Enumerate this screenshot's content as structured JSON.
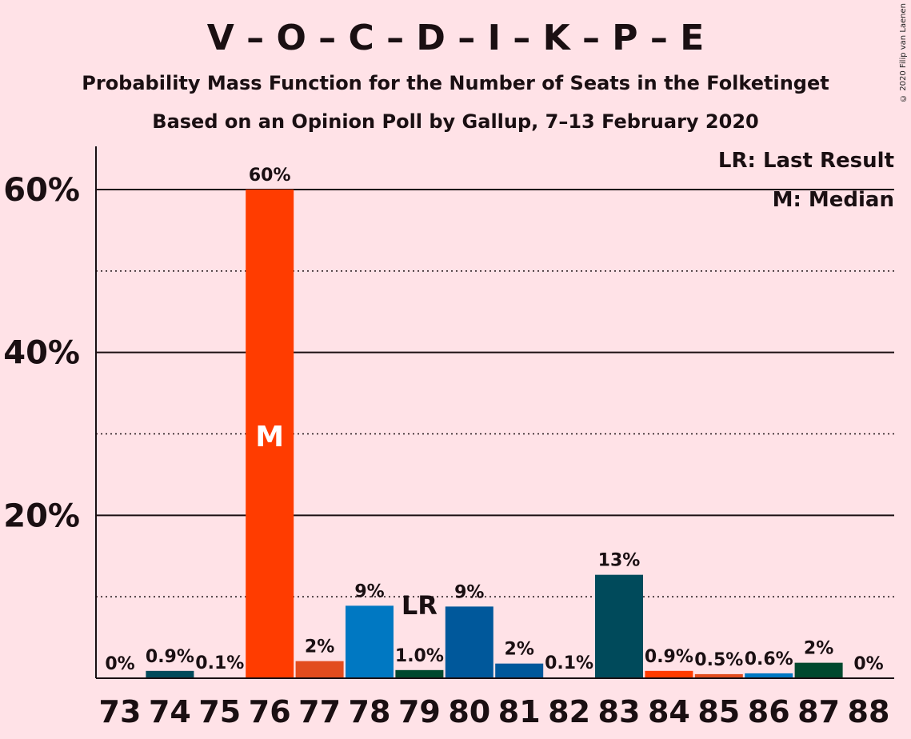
{
  "title": "V – O – C – D – I – K – P – E",
  "subtitle": "Probability Mass Function for the Number of Seats in the Folketinget",
  "subtitle2": "Based on an Opinion Poll by Gallup, 7–13 February 2020",
  "copyright": "© 2020 Filip van Laenen",
  "legend": {
    "last_result": "LR: Last Result",
    "median": "M: Median"
  },
  "chart_data": {
    "type": "bar",
    "categories": [
      "73",
      "74",
      "75",
      "76",
      "77",
      "78",
      "79",
      "80",
      "81",
      "82",
      "83",
      "84",
      "85",
      "86",
      "87",
      "88"
    ],
    "values": [
      0,
      0.9,
      0.1,
      60,
      2.1,
      8.9,
      1.0,
      8.8,
      1.8,
      0.1,
      12.7,
      0.9,
      0.5,
      0.6,
      1.9,
      0
    ],
    "data_labels": [
      "0%",
      "0.9%",
      "0.1%",
      "60%",
      "2%",
      "9%",
      "1.0%",
      "9%",
      "2%",
      "0.1%",
      "13%",
      "0.9%",
      "0.5%",
      "0.6%",
      "2%",
      "0%"
    ],
    "colors": [
      "#004A5B",
      "#004A5B",
      "#E24C1E",
      "#FF3C00",
      "#E24C1E",
      "#0078C2",
      "#00492F",
      "#00589B",
      "#00589B",
      "#004A5B",
      "#004A5B",
      "#FF3C00",
      "#E24C1E",
      "#0078C2",
      "#00492F",
      "#00492F"
    ],
    "ylim": [
      0,
      65
    ],
    "yticks": [
      20,
      40,
      60
    ],
    "ytick_labels": [
      "20%",
      "40%",
      "60%"
    ],
    "minor_gridlines": [
      10,
      30,
      50
    ],
    "median_category": "76",
    "median_marker": "M",
    "last_result_category": "79",
    "last_result_marker": "LR",
    "legend_position": "top-right"
  }
}
